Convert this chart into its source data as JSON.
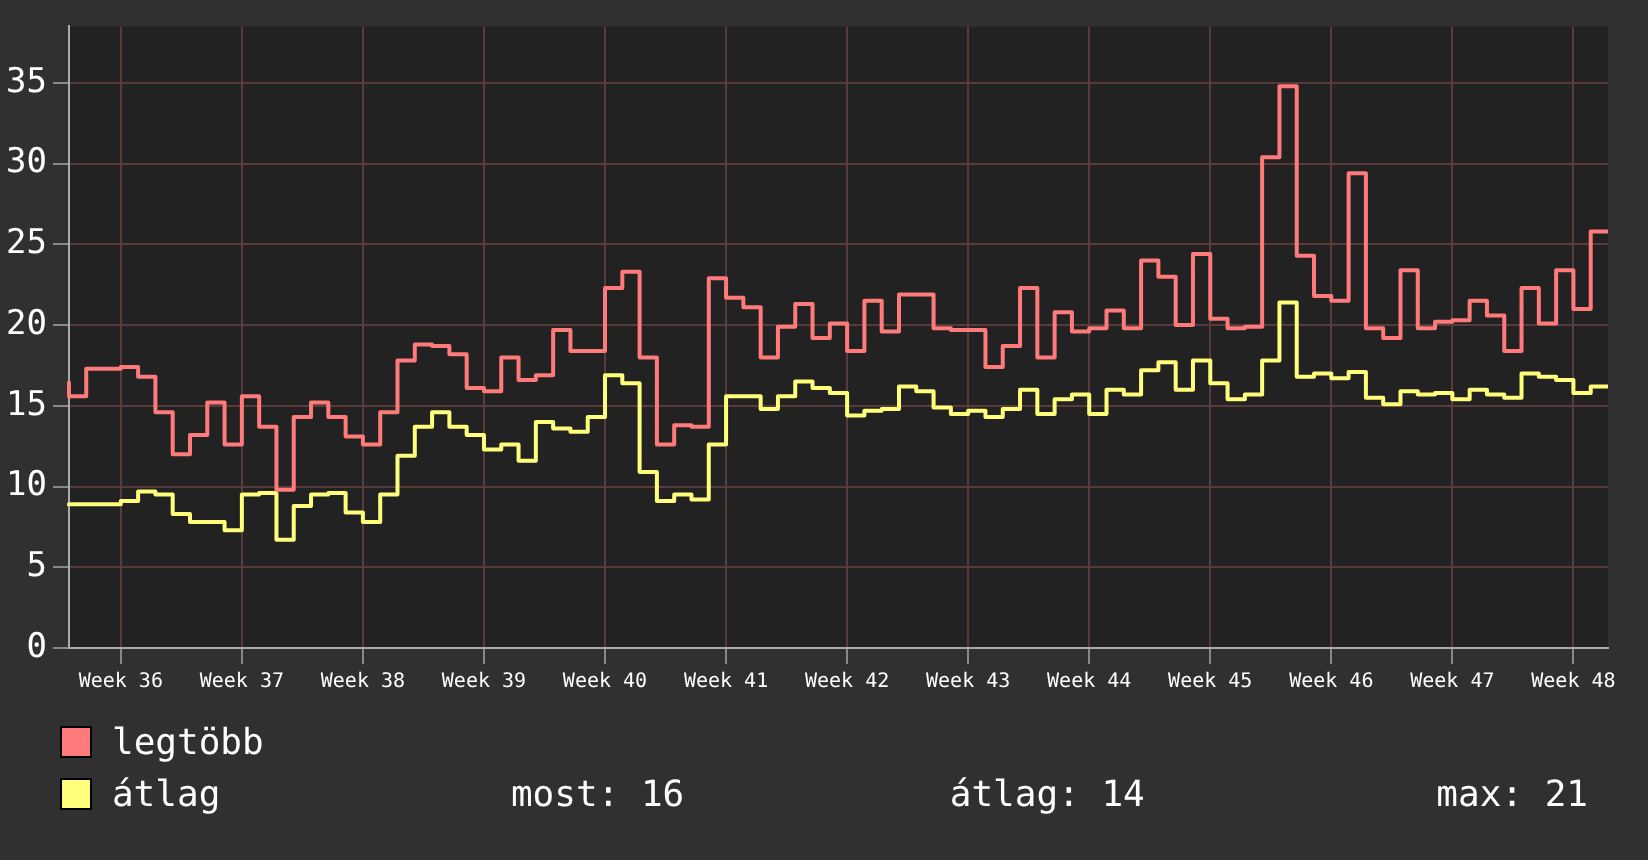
{
  "chart_data": {
    "type": "step",
    "categories": [
      null,
      null,
      null,
      "Week 36",
      null,
      null,
      null,
      null,
      null,
      null,
      "Week 37",
      null,
      null,
      null,
      null,
      null,
      null,
      "Week 38",
      null,
      null,
      null,
      null,
      null,
      null,
      "Week 39",
      null,
      null,
      null,
      null,
      null,
      null,
      "Week 40",
      null,
      null,
      null,
      null,
      null,
      null,
      "Week 41",
      null,
      null,
      null,
      null,
      null,
      null,
      "Week 42",
      null,
      null,
      null,
      null,
      null,
      null,
      "Week 43",
      null,
      null,
      null,
      null,
      null,
      null,
      "Week 44",
      null,
      null,
      null,
      null,
      null,
      null,
      "Week 45",
      null,
      null,
      null,
      null,
      null,
      null,
      "Week 46",
      null,
      null,
      null,
      null,
      null,
      null,
      "Week 47",
      null,
      null,
      null,
      null,
      null,
      null,
      "Week 48",
      null,
      null
    ],
    "series": [
      {
        "name": "legtöbb",
        "color": "#ff7b7b",
        "values": [
          16.5,
          15.6,
          17.3,
          17.3,
          17.4,
          16.8,
          14.6,
          12.0,
          13.2,
          15.2,
          12.6,
          15.6,
          13.7,
          9.8,
          14.3,
          15.2,
          14.3,
          13.1,
          12.6,
          14.6,
          17.8,
          18.8,
          18.7,
          18.2,
          16.1,
          15.9,
          18.0,
          16.6,
          16.9,
          19.7,
          18.4,
          18.4,
          22.3,
          23.3,
          18.0,
          12.6,
          13.8,
          13.7,
          22.9,
          21.7,
          21.1,
          18.0,
          19.9,
          21.3,
          19.2,
          20.1,
          18.4,
          21.5,
          19.6,
          21.9,
          21.9,
          19.8,
          19.7,
          19.7,
          17.4,
          18.7,
          22.3,
          18.0,
          20.8,
          19.6,
          19.8,
          20.9,
          19.8,
          24.0,
          23.0,
          20.0,
          24.4,
          20.4,
          19.8,
          19.9,
          30.4,
          34.8,
          24.3,
          21.8,
          21.5,
          29.4,
          19.8,
          19.2,
          23.4,
          19.8,
          20.2,
          20.3,
          21.5,
          20.6,
          18.4,
          22.3,
          20.1,
          23.4,
          21.0,
          25.8
        ]
      },
      {
        "name": "átlag",
        "color": "#ffff7b",
        "values": [
          8.8,
          8.9,
          8.9,
          8.9,
          9.1,
          9.7,
          9.5,
          8.3,
          7.8,
          7.8,
          7.3,
          9.5,
          9.6,
          6.7,
          8.8,
          9.5,
          9.6,
          8.4,
          7.8,
          9.5,
          11.9,
          13.7,
          14.6,
          13.7,
          13.2,
          12.3,
          12.6,
          11.6,
          14.0,
          13.6,
          13.4,
          14.3,
          16.9,
          16.4,
          10.9,
          9.1,
          9.5,
          9.2,
          12.6,
          15.6,
          15.6,
          14.8,
          15.6,
          16.5,
          16.1,
          15.8,
          14.4,
          14.7,
          14.8,
          16.2,
          15.9,
          14.9,
          14.5,
          14.7,
          14.3,
          14.8,
          16.0,
          14.5,
          15.4,
          15.7,
          14.5,
          16.0,
          15.7,
          17.2,
          17.7,
          16.0,
          17.8,
          16.4,
          15.4,
          15.7,
          17.8,
          21.4,
          16.8,
          17.0,
          16.7,
          17.1,
          15.5,
          15.1,
          15.9,
          15.7,
          15.8,
          15.4,
          16.0,
          15.7,
          15.5,
          17.0,
          16.8,
          16.6,
          15.8,
          16.2
        ]
      }
    ],
    "ylim": [
      0,
      38.5
    ],
    "yticks": [
      0,
      5,
      10,
      15,
      20,
      25,
      30,
      35
    ],
    "grid": true,
    "legend": "bottom",
    "marker": "none",
    "annotations": [
      "most: 16",
      "átlag: 14",
      "max: 21"
    ]
  }
}
